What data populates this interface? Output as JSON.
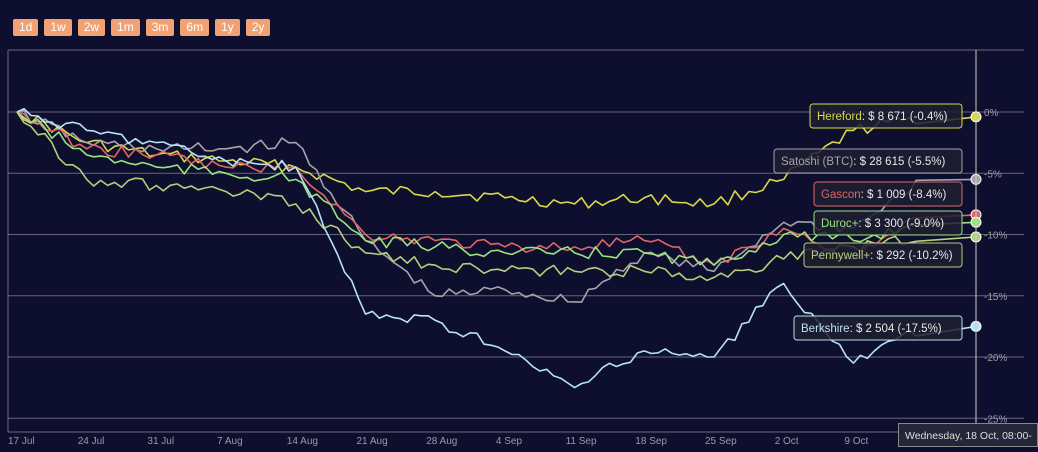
{
  "range_buttons": [
    "1d",
    "1w",
    "2w",
    "1m",
    "3m",
    "6m",
    "1y",
    "2y"
  ],
  "hover_date": "Wednesday, 18 Oct, 08:00-",
  "colors": {
    "background": "#0e0e2e",
    "grid": "#8a8a9a",
    "button": "#f2a272",
    "Hereford": "#d8d84a",
    "Satoshi (BTC)": "#a7a3ad",
    "Gascon": "#e06666",
    "Duroc+": "#9be37c",
    "Pennywell+": "#b5cf7a",
    "Berkshire": "#b6e3f5"
  },
  "chart_data": {
    "type": "line",
    "title": "",
    "xlabel": "",
    "ylabel": "",
    "x_ticks": [
      "17 Jul",
      "24 Jul",
      "31 Jul",
      "7 Aug",
      "14 Aug",
      "21 Aug",
      "28 Aug",
      "4 Sep",
      "11 Sep",
      "18 Sep",
      "25 Sep",
      "2 Oct",
      "9 Oct"
    ],
    "y_ticks": [
      "0%",
      "-5%",
      "-10%",
      "-15%",
      "-20%",
      "-25%"
    ],
    "y_tick_values": [
      0,
      -5,
      -10,
      -15,
      -20,
      -25
    ],
    "ylim": [
      -25,
      0
    ],
    "grid": true,
    "x": [
      "17 Jul",
      "24 Jul",
      "31 Jul",
      "7 Aug",
      "14 Aug",
      "21 Aug",
      "28 Aug",
      "4 Sep",
      "11 Sep",
      "18 Sep",
      "25 Sep",
      "2 Oct",
      "9 Oct",
      "18 Oct"
    ],
    "series": [
      {
        "name": "Hereford",
        "label": "$ 8 671 (-0.4%)",
        "values": [
          0,
          -2.5,
          -3.5,
          -4.0,
          -4.5,
          -6.5,
          -6.5,
          -7.0,
          -7.5,
          -7.0,
          -7.5,
          -5.5,
          -1.5,
          -0.4
        ]
      },
      {
        "name": "Satoshi (BTC)",
        "label": "$ 28 615 (-5.5%)",
        "values": [
          0,
          -2.5,
          -3.0,
          -3.0,
          -2.5,
          -10.5,
          -15.0,
          -14.5,
          -15.5,
          -11.5,
          -13.0,
          -9.0,
          -9.5,
          -5.5
        ]
      },
      {
        "name": "Gascon",
        "label": "$ 1 009 (-8.4%)",
        "values": [
          0,
          -3.0,
          -3.5,
          -4.5,
          -4.5,
          -10.0,
          -10.5,
          -11.0,
          -11.0,
          -10.5,
          -12.5,
          -9.5,
          -12.0,
          -8.4
        ]
      },
      {
        "name": "Duroc+",
        "label": "$ 3 300 (-9.0%)",
        "values": [
          0,
          -3.5,
          -4.5,
          -5.0,
          -5.5,
          -10.5,
          -11.0,
          -11.5,
          -11.5,
          -11.5,
          -12.5,
          -10.0,
          -10.5,
          -9.0
        ]
      },
      {
        "name": "Pennywell+",
        "label": "$ 292 (-10.2%)",
        "values": [
          0,
          -5.5,
          -6.0,
          -6.5,
          -7.5,
          -11.5,
          -12.5,
          -13.0,
          -13.0,
          -13.0,
          -13.5,
          -12.0,
          -11.0,
          -10.2
        ]
      },
      {
        "name": "Berkshire",
        "label": "$ 2 504 (-17.5%)",
        "values": [
          0,
          -1.5,
          -2.5,
          -4.0,
          -4.5,
          -16.5,
          -17.0,
          -19.5,
          -22.5,
          -19.5,
          -20.0,
          -14.0,
          -20.5,
          -17.5
        ]
      }
    ]
  }
}
